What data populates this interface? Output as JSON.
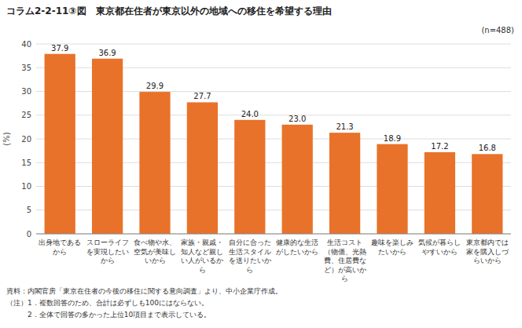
{
  "chart_data": {
    "type": "bar",
    "title": "コラム2-2-11③図　東京都在住者が東京以外の地域への移住を希望する理由",
    "ylabel": "(%)",
    "categories": [
      "出身地である\nから",
      "スローライフ\nを実現したい\nから",
      "食べ物や水、\n空気が美味し\nいから",
      "家族・親戚・\n知人など親し\nい人がいるか\nら",
      "自分に合った\n生活スタイル\nを送りたいか\nら",
      "健康的な生活\nがしたいから",
      "生活コスト\n（物価、光熱\n費、住居費な\nど）が高いか\nら",
      "趣味を楽しみ\nたいから",
      "気候が暮らし\nやすいから",
      "東京都内では\n家を購入しづ\nらいから"
    ],
    "values": [
      37.9,
      36.9,
      29.9,
      27.7,
      24.0,
      23.0,
      21.3,
      18.9,
      17.2,
      16.8
    ],
    "value_labels": [
      "37.9",
      "36.9",
      "29.9",
      "27.7",
      "24.0",
      "23.0",
      "21.3",
      "18.9",
      "17.2",
      "16.8"
    ],
    "data_labels": true,
    "color": "#E8722A",
    "ylim": [
      0,
      40
    ],
    "yticks": [
      0,
      5,
      10,
      15,
      20,
      25,
      30,
      35,
      40
    ],
    "grid": true,
    "annotations": [
      "(n=488)",
      "資料：内閣官房「東京在住者の今後の移住に関する意向調査」より、中小企業庁作成。",
      "（注）1．複数回答のため、合計は必ずしも100にはならない。",
      "　　　2．全体で回答の多かった上位10項目まで表示している。"
    ]
  }
}
